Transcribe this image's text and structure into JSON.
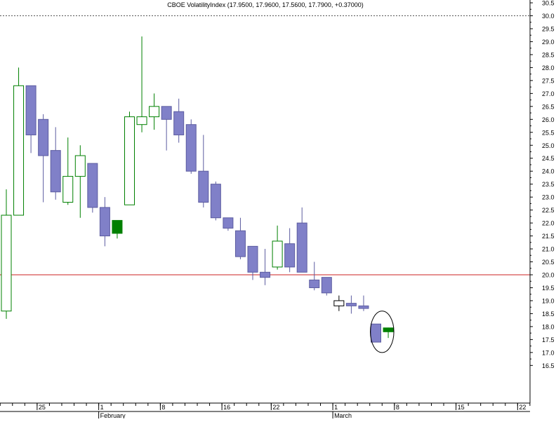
{
  "chart_data": {
    "type": "candlestick",
    "title": "CBOE VolatilityIndex (17.9500, 17.9600, 17.5600, 17.7900, +0.37000)",
    "xlabel": "",
    "ylabel": "",
    "ylim": [
      16.3,
      30.7
    ],
    "y_ticks": [
      "16.5",
      "17.0",
      "17.5",
      "18.0",
      "18.5",
      "19.0",
      "19.5",
      "20.0",
      "20.5",
      "21.0",
      "21.5",
      "22.0",
      "22.5",
      "23.0",
      "23.5",
      "24.0",
      "24.5",
      "25.0",
      "25.5",
      "26.0",
      "26.5",
      "27.0",
      "27.5",
      "28.0",
      "28.5",
      "29.0",
      "29.5",
      "30.0",
      "30.5"
    ],
    "x_day_ticks": [
      {
        "label": "25",
        "slot": 2.5
      },
      {
        "label": "1",
        "slot": 7.5
      },
      {
        "label": "8",
        "slot": 12.5
      },
      {
        "label": "16",
        "slot": 17.5
      },
      {
        "label": "22",
        "slot": 21.5
      },
      {
        "label": "1",
        "slot": 26.5
      },
      {
        "label": "8",
        "slot": 31.5
      },
      {
        "label": "15",
        "slot": 36.5
      },
      {
        "label": "22",
        "slot": 41.5
      }
    ],
    "x_month_labels": [
      {
        "label": "February",
        "slot": 7.5
      },
      {
        "label": "March",
        "slot": 26.5
      }
    ],
    "reference_lines": [
      {
        "value": 30.0,
        "style": "dotted",
        "color": "#555555"
      },
      {
        "value": 20.0,
        "style": "solid",
        "color": "#cc2222"
      }
    ],
    "candles": [
      {
        "open": 18.6,
        "high": 23.3,
        "low": 18.3,
        "close": 22.3,
        "color": "hollow-green"
      },
      {
        "open": 22.3,
        "high": 28.0,
        "low": 22.3,
        "close": 27.3,
        "color": "hollow-green"
      },
      {
        "open": 27.3,
        "high": 27.3,
        "low": 24.7,
        "close": 25.4,
        "color": "purple"
      },
      {
        "open": 26.0,
        "high": 26.2,
        "low": 22.8,
        "close": 24.6,
        "color": "purple"
      },
      {
        "open": 24.8,
        "high": 25.7,
        "low": 22.9,
        "close": 23.2,
        "color": "purple"
      },
      {
        "open": 22.8,
        "high": 25.3,
        "low": 22.7,
        "close": 23.8,
        "color": "hollow-green"
      },
      {
        "open": 23.8,
        "high": 25.0,
        "low": 22.2,
        "close": 24.6,
        "color": "hollow-green"
      },
      {
        "open": 24.3,
        "high": 24.3,
        "low": 22.4,
        "close": 22.6,
        "color": "purple"
      },
      {
        "open": 22.6,
        "high": 23.0,
        "low": 21.1,
        "close": 21.5,
        "color": "purple"
      },
      {
        "open": 21.6,
        "high": 22.1,
        "low": 21.4,
        "close": 22.1,
        "color": "green"
      },
      {
        "open": 22.7,
        "high": 26.3,
        "low": 22.7,
        "close": 26.1,
        "color": "hollow-green"
      },
      {
        "open": 25.8,
        "high": 29.2,
        "low": 25.5,
        "close": 26.1,
        "color": "hollow-green"
      },
      {
        "open": 26.1,
        "high": 27.0,
        "low": 25.6,
        "close": 26.5,
        "color": "hollow-green"
      },
      {
        "open": 26.5,
        "high": 26.5,
        "low": 24.8,
        "close": 26.0,
        "color": "purple"
      },
      {
        "open": 26.3,
        "high": 26.8,
        "low": 25.1,
        "close": 25.4,
        "color": "purple"
      },
      {
        "open": 25.8,
        "high": 26.0,
        "low": 23.9,
        "close": 24.0,
        "color": "purple"
      },
      {
        "open": 24.0,
        "high": 25.4,
        "low": 22.6,
        "close": 22.8,
        "color": "purple"
      },
      {
        "open": 23.5,
        "high": 23.6,
        "low": 22.1,
        "close": 22.2,
        "color": "purple"
      },
      {
        "open": 22.2,
        "high": 22.2,
        "low": 21.7,
        "close": 21.8,
        "color": "purple"
      },
      {
        "open": 21.7,
        "high": 22.2,
        "low": 20.6,
        "close": 20.7,
        "color": "purple"
      },
      {
        "open": 21.1,
        "high": 21.1,
        "low": 19.8,
        "close": 20.1,
        "color": "purple"
      },
      {
        "open": 20.1,
        "high": 21.0,
        "low": 19.6,
        "close": 19.9,
        "color": "purple"
      },
      {
        "open": 20.3,
        "high": 21.9,
        "low": 20.2,
        "close": 21.3,
        "color": "hollow-green"
      },
      {
        "open": 21.2,
        "high": 21.8,
        "low": 20.1,
        "close": 20.3,
        "color": "purple"
      },
      {
        "open": 22.0,
        "high": 22.6,
        "low": 20.1,
        "close": 20.1,
        "color": "purple"
      },
      {
        "open": 19.8,
        "high": 20.5,
        "low": 19.4,
        "close": 19.5,
        "color": "purple"
      },
      {
        "open": 19.9,
        "high": 19.9,
        "low": 19.2,
        "close": 19.3,
        "color": "purple"
      },
      {
        "open": 18.8,
        "high": 19.2,
        "low": 18.6,
        "close": 19.0,
        "color": "hollow-black"
      },
      {
        "open": 18.9,
        "high": 19.2,
        "low": 18.5,
        "close": 18.8,
        "color": "purple"
      },
      {
        "open": 18.8,
        "high": 19.2,
        "low": 18.6,
        "close": 18.7,
        "color": "purple"
      },
      {
        "open": 18.1,
        "high": 18.1,
        "low": 17.4,
        "close": 17.4,
        "color": "purple"
      },
      {
        "open": 17.8,
        "high": 17.96,
        "low": 17.56,
        "close": 17.95,
        "color": "green"
      }
    ],
    "annotations": [
      {
        "type": "ellipse",
        "around_slots": [
          30,
          31
        ],
        "y_range": [
          17.0,
          18.6
        ]
      }
    ],
    "colors": {
      "purple_fill": "#8080c8",
      "purple_stroke": "#5c5ca0",
      "green": "#008000",
      "black": "#000000",
      "ref_red": "#cc2222"
    }
  }
}
